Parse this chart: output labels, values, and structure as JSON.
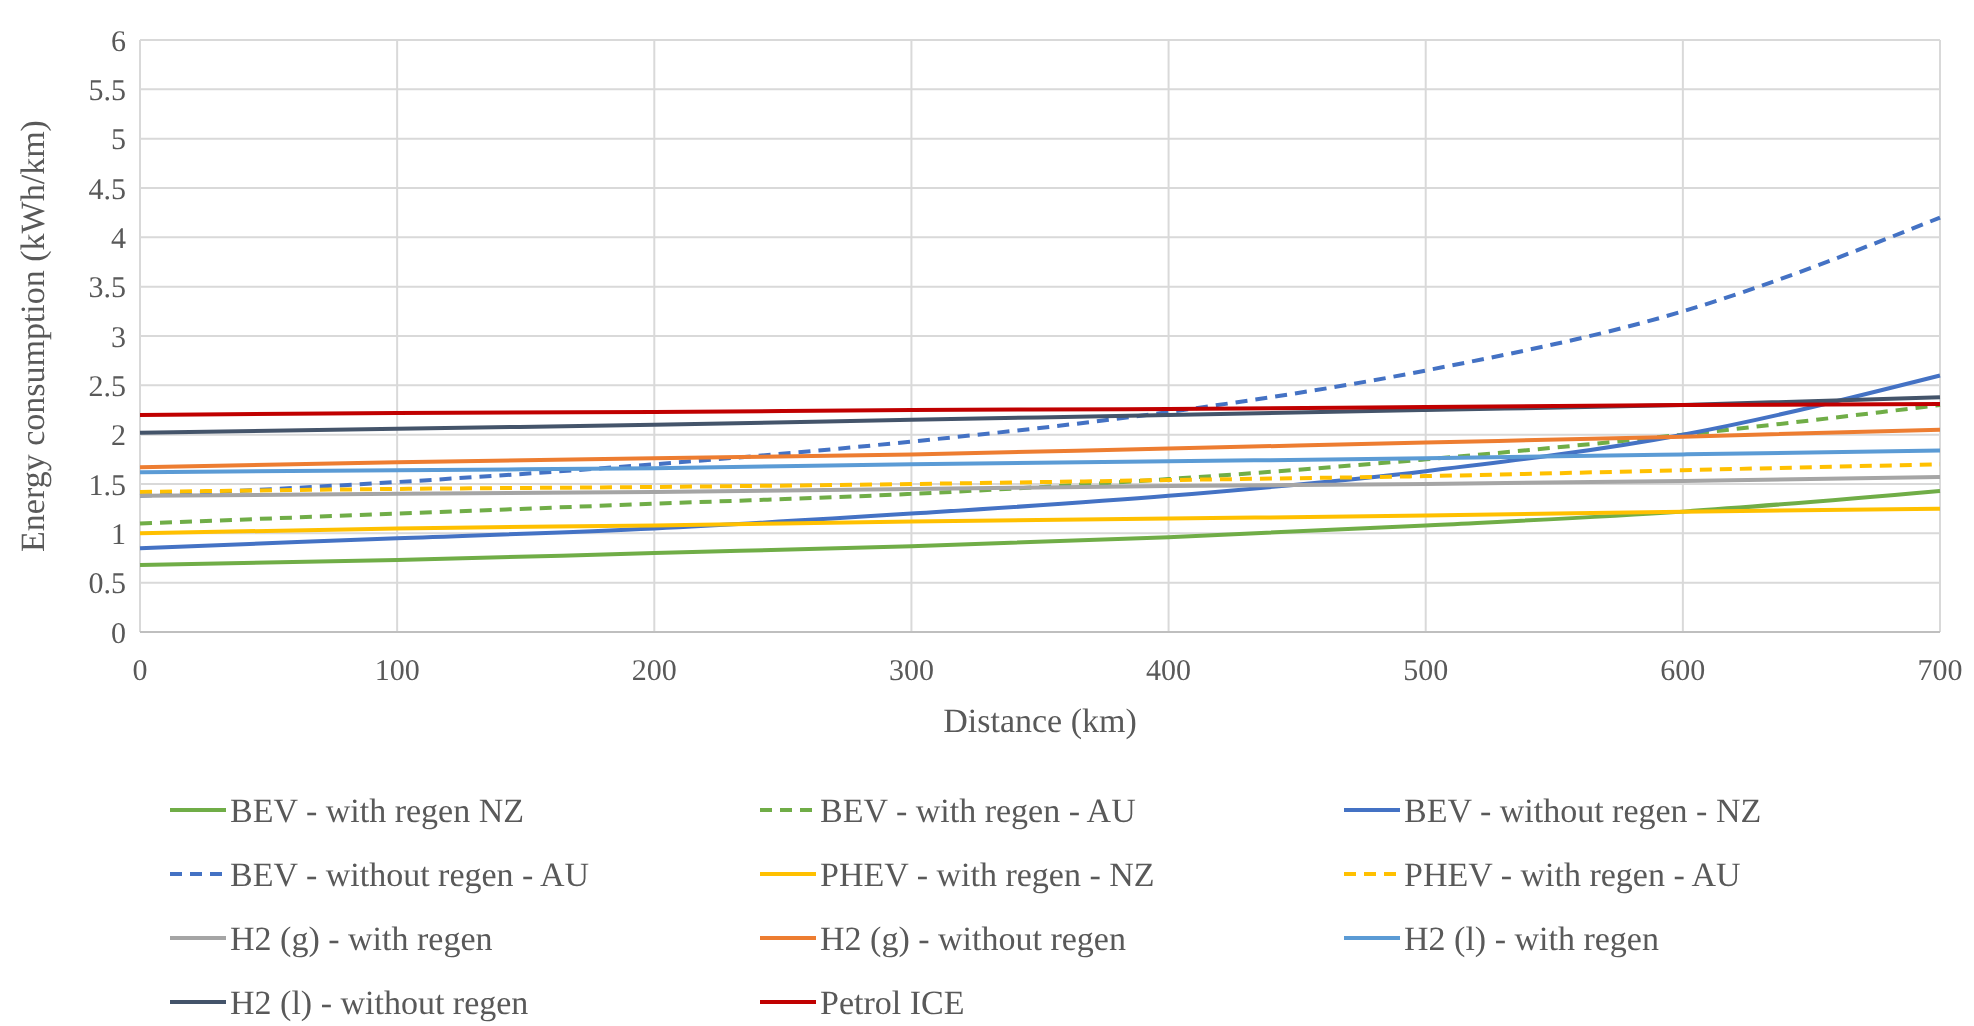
{
  "chart_data": {
    "type": "line",
    "xlabel": "Distance (km)",
    "ylabel": "Energy consumption (kWh/km)",
    "x": [
      0,
      100,
      200,
      300,
      400,
      500,
      600,
      700
    ],
    "xlim": [
      0,
      700
    ],
    "xticks": [
      0,
      100,
      200,
      300,
      400,
      500,
      600,
      700
    ],
    "ylim": [
      0,
      6
    ],
    "yticks": [
      0,
      0.5,
      1,
      1.5,
      2,
      2.5,
      3,
      3.5,
      4,
      4.5,
      5,
      5.5,
      6
    ],
    "grid": true,
    "legend": "bottom",
    "marker": "none",
    "series": [
      {
        "name": "BEV - with regen NZ",
        "color": "#70ad47",
        "line_style": "solid",
        "values": [
          0.68,
          0.73,
          0.8,
          0.87,
          0.96,
          1.08,
          1.22,
          1.43
        ]
      },
      {
        "name": "BEV - with regen - AU",
        "color": "#70ad47",
        "line_style": "dashed",
        "values": [
          1.1,
          1.2,
          1.3,
          1.4,
          1.55,
          1.75,
          2.0,
          2.3
        ]
      },
      {
        "name": "BEV - without regen - NZ",
        "color": "#4472c4",
        "line_style": "solid",
        "values": [
          0.85,
          0.95,
          1.05,
          1.2,
          1.38,
          1.63,
          2.0,
          2.6
        ]
      },
      {
        "name": "BEV - without regen - AU",
        "color": "#4472c4",
        "line_style": "dashed",
        "values": [
          1.38,
          1.52,
          1.7,
          1.93,
          2.23,
          2.65,
          3.25,
          4.2
        ]
      },
      {
        "name": "PHEV - with regen - NZ",
        "color": "#ffc000",
        "line_style": "solid",
        "values": [
          1.0,
          1.05,
          1.08,
          1.12,
          1.15,
          1.18,
          1.22,
          1.25
        ]
      },
      {
        "name": "PHEV - with regen - AU",
        "color": "#ffc000",
        "line_style": "dashed",
        "values": [
          1.42,
          1.45,
          1.47,
          1.5,
          1.54,
          1.58,
          1.64,
          1.7
        ]
      },
      {
        "name": "H2 (g) - with regen",
        "color": "#a5a5a5",
        "line_style": "solid",
        "values": [
          1.38,
          1.4,
          1.42,
          1.45,
          1.48,
          1.5,
          1.53,
          1.57
        ]
      },
      {
        "name": "H2 (g) - without regen",
        "color": "#ed7d31",
        "line_style": "solid",
        "values": [
          1.67,
          1.72,
          1.76,
          1.8,
          1.86,
          1.92,
          1.98,
          2.05
        ]
      },
      {
        "name": "H2 (l) - with regen",
        "color": "#5b9bd5",
        "line_style": "solid",
        "values": [
          1.62,
          1.64,
          1.66,
          1.7,
          1.73,
          1.76,
          1.8,
          1.84
        ]
      },
      {
        "name": "H2 (l) - without regen",
        "color": "#44546a",
        "line_style": "solid",
        "values": [
          2.02,
          2.06,
          2.1,
          2.15,
          2.2,
          2.25,
          2.3,
          2.38
        ]
      },
      {
        "name": "Petrol ICE",
        "color": "#c00000",
        "line_style": "solid",
        "values": [
          2.2,
          2.22,
          2.23,
          2.25,
          2.26,
          2.28,
          2.3,
          2.31
        ]
      }
    ]
  }
}
